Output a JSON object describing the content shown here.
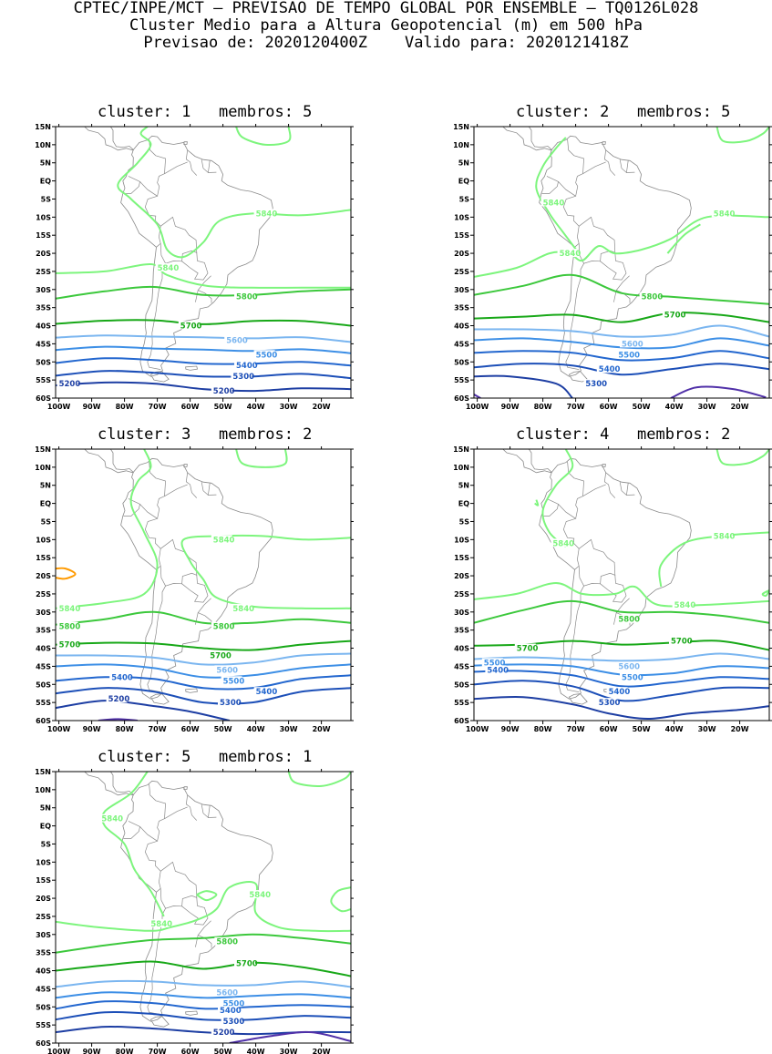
{
  "header": {
    "line1": "CPTEC/INPE/MCT – PREVISAO DE TEMPO GLOBAL POR ENSEMBLE – TQ0126L028",
    "line2": "Cluster Medio para a Altura Geopotencial (m) em 500 hPa",
    "line3": "Previsao de: 2020120400Z    Valido para: 2020121418Z"
  },
  "axes": {
    "lat_labels": [
      "15N",
      "10N",
      "5N",
      "EQ",
      "5S",
      "10S",
      "15S",
      "20S",
      "25S",
      "30S",
      "35S",
      "40S",
      "45S",
      "50S",
      "55S",
      "60S"
    ],
    "lon_labels": [
      "100W",
      "90W",
      "80W",
      "70W",
      "60W",
      "50W",
      "40W",
      "30W",
      "20W"
    ]
  },
  "colors": {
    "c5840": "#7df57d",
    "c5800": "#3cc83c",
    "c5700": "#18a818",
    "c5600": "#7bb6f0",
    "c5500": "#3d8fe6",
    "c5400": "#2367cf",
    "c5300": "#1c4fb8",
    "c5200": "#1d3ea3",
    "c5100": "#5030a8",
    "c5900": "#ff9a00",
    "coast": "#8a8a8a"
  },
  "panels": [
    {
      "title": "cluster: 1   membros: 5",
      "labels": [
        {
          "t": "5840",
          "lon": -40,
          "lat": -9,
          "c": "c5840"
        },
        {
          "t": "5840",
          "lon": -70,
          "lat": -24,
          "c": "c5840"
        },
        {
          "t": "5800",
          "lon": -46,
          "lat": -32,
          "c": "c5800"
        },
        {
          "t": "5700",
          "lon": -63,
          "lat": -40,
          "c": "c5700"
        },
        {
          "t": "5600",
          "lon": -49,
          "lat": -44,
          "c": "c5600"
        },
        {
          "t": "5500",
          "lon": -40,
          "lat": -48,
          "c": "c5500"
        },
        {
          "t": "5400",
          "lon": -46,
          "lat": -51,
          "c": "c5400"
        },
        {
          "t": "5300",
          "lon": -47,
          "lat": -54,
          "c": "c5300"
        },
        {
          "t": "5200",
          "lon": -53,
          "lat": -58,
          "c": "c5200"
        },
        {
          "t": "5200",
          "lon": -100,
          "lat": -56,
          "c": "c5200"
        }
      ]
    },
    {
      "title": "cluster: 2   membros: 5",
      "labels": [
        {
          "t": "5840",
          "lon": -80,
          "lat": -6,
          "c": "c5840"
        },
        {
          "t": "5840",
          "lon": -28,
          "lat": -9,
          "c": "c5840"
        },
        {
          "t": "5840",
          "lon": -75,
          "lat": -20,
          "c": "c5840"
        },
        {
          "t": "5800",
          "lon": -50,
          "lat": -32,
          "c": "c5800"
        },
        {
          "t": "5700",
          "lon": -43,
          "lat": -37,
          "c": "c5700"
        },
        {
          "t": "5600",
          "lon": -56,
          "lat": -45,
          "c": "c5600"
        },
        {
          "t": "5500",
          "lon": -57,
          "lat": -48,
          "c": "c5500"
        },
        {
          "t": "5400",
          "lon": -63,
          "lat": -52,
          "c": "c5400"
        },
        {
          "t": "5300",
          "lon": -67,
          "lat": -56,
          "c": "c5300"
        }
      ]
    },
    {
      "title": "cluster: 3   membros: 2",
      "labels": [
        {
          "t": "5840",
          "lon": -53,
          "lat": -10,
          "c": "c5840"
        },
        {
          "t": "5840",
          "lon": -47,
          "lat": -29,
          "c": "c5840"
        },
        {
          "t": "5840",
          "lon": -100,
          "lat": -29,
          "c": "c5840"
        },
        {
          "t": "5800",
          "lon": -100,
          "lat": -34,
          "c": "c5800"
        },
        {
          "t": "5800",
          "lon": -53,
          "lat": -34,
          "c": "c5800"
        },
        {
          "t": "5700",
          "lon": -100,
          "lat": -39,
          "c": "c5700"
        },
        {
          "t": "5700",
          "lon": -54,
          "lat": -42,
          "c": "c5700"
        },
        {
          "t": "5600",
          "lon": -52,
          "lat": -46,
          "c": "c5600"
        },
        {
          "t": "5500",
          "lon": -50,
          "lat": -49,
          "c": "c5500"
        },
        {
          "t": "5400",
          "lon": -84,
          "lat": -48,
          "c": "c5400"
        },
        {
          "t": "5400",
          "lon": -40,
          "lat": -52,
          "c": "c5400"
        },
        {
          "t": "5300",
          "lon": -51,
          "lat": -55,
          "c": "c5300"
        },
        {
          "t": "5200",
          "lon": -85,
          "lat": -54,
          "c": "c5200"
        }
      ]
    },
    {
      "title": "cluster: 4   membros: 2",
      "labels": [
        {
          "t": "5840",
          "lon": -77,
          "lat": -11,
          "c": "c5840"
        },
        {
          "t": "5840",
          "lon": -28,
          "lat": -9,
          "c": "c5840"
        },
        {
          "t": "5840",
          "lon": -40,
          "lat": -28,
          "c": "c5840"
        },
        {
          "t": "5800",
          "lon": -57,
          "lat": -32,
          "c": "c5800"
        },
        {
          "t": "5700",
          "lon": -88,
          "lat": -40,
          "c": "c5700"
        },
        {
          "t": "5700",
          "lon": -41,
          "lat": -38,
          "c": "c5700"
        },
        {
          "t": "5600",
          "lon": -57,
          "lat": -45,
          "c": "c5600"
        },
        {
          "t": "5500",
          "lon": -98,
          "lat": -44,
          "c": "c5500"
        },
        {
          "t": "5400",
          "lon": -97,
          "lat": -46,
          "c": "c5400"
        },
        {
          "t": "5500",
          "lon": -56,
          "lat": -48,
          "c": "c5500"
        },
        {
          "t": "5400",
          "lon": -60,
          "lat": -52,
          "c": "c5400"
        },
        {
          "t": "5300",
          "lon": -63,
          "lat": -55,
          "c": "c5300"
        }
      ]
    },
    {
      "title": "cluster: 5   membros: 1",
      "labels": [
        {
          "t": "5840",
          "lon": -87,
          "lat": 2,
          "c": "c5840"
        },
        {
          "t": "5840",
          "lon": -42,
          "lat": -19,
          "c": "c5840"
        },
        {
          "t": "5840",
          "lon": -72,
          "lat": -27,
          "c": "c5840"
        },
        {
          "t": "5800",
          "lon": -52,
          "lat": -32,
          "c": "c5800"
        },
        {
          "t": "5700",
          "lon": -46,
          "lat": -38,
          "c": "c5700"
        },
        {
          "t": "5600",
          "lon": -52,
          "lat": -46,
          "c": "c5600"
        },
        {
          "t": "5500",
          "lon": -50,
          "lat": -49,
          "c": "c5500"
        },
        {
          "t": "5400",
          "lon": -51,
          "lat": -51,
          "c": "c5400"
        },
        {
          "t": "5300",
          "lon": -50,
          "lat": -54,
          "c": "c5300"
        },
        {
          "t": "5200",
          "lon": -53,
          "lat": -57,
          "c": "c5200"
        }
      ]
    }
  ]
}
